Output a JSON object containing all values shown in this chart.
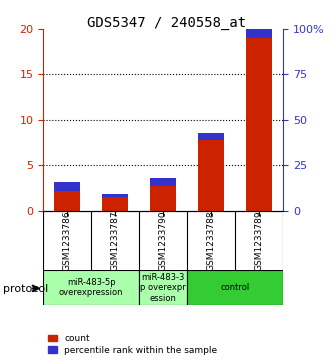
{
  "title": "GDS5347 / 240558_at",
  "samples": [
    "GSM1233786",
    "GSM1233787",
    "GSM1233790",
    "GSM1233788",
    "GSM1233789"
  ],
  "red_values": [
    2.2,
    1.5,
    2.7,
    7.8,
    19.0
  ],
  "blue_values": [
    0.9,
    0.35,
    0.9,
    0.7,
    1.25
  ],
  "ylim_left": [
    0,
    20
  ],
  "ylim_right": [
    0,
    100
  ],
  "yticks_left": [
    0,
    5,
    10,
    15,
    20
  ],
  "yticks_right": [
    0,
    25,
    50,
    75,
    100
  ],
  "ytick_labels_left": [
    "0",
    "5",
    "10",
    "15",
    "20"
  ],
  "ytick_labels_right": [
    "0",
    "25",
    "50",
    "75",
    "100%"
  ],
  "red_color": "#cc2200",
  "blue_color": "#3333cc",
  "bar_width": 0.55,
  "protocol_groups": [
    {
      "label": "miR-483-5p\noverexpression",
      "samples": [
        "GSM1233786",
        "GSM1233787"
      ],
      "color": "#aaffaa"
    },
    {
      "label": "miR-483-3\np overexpr\nession",
      "samples": [
        "GSM1233790"
      ],
      "color": "#aaffaa"
    },
    {
      "label": "control",
      "samples": [
        "GSM1233788",
        "GSM1233789"
      ],
      "color": "#33cc33"
    }
  ],
  "sample_box_color": "#cccccc",
  "legend_count_label": "count",
  "legend_percentile_label": "percentile rank within the sample",
  "protocol_label": "protocol",
  "background_color": "#ffffff",
  "grid_color": "#000000",
  "left_tick_color": "#cc2200",
  "right_tick_color": "#3333cc"
}
